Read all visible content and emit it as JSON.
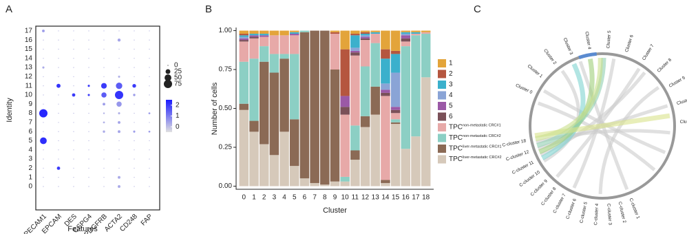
{
  "chart_data": [
    {
      "type": "dot",
      "panel": "A",
      "y_label": "Identity",
      "x_label": "Features",
      "categories": [
        "PECAM1",
        "EPCAM",
        "DES",
        "CSPG4",
        "PDGFRB",
        "ACTA2",
        "CD248",
        "FAP"
      ],
      "identities": [
        "0",
        "1",
        "2",
        "3",
        "4",
        "5",
        "6",
        "7",
        "8",
        "9",
        "10",
        "11",
        "12",
        "13",
        "14",
        "15",
        "16",
        "17"
      ],
      "pct": [
        [
          1,
          1,
          1,
          1,
          1,
          50,
          1,
          1,
          75,
          1,
          1,
          1,
          1,
          5,
          1,
          1,
          1,
          8
        ],
        [
          1,
          1,
          12,
          1,
          1,
          1,
          1,
          1,
          1,
          1,
          1,
          18,
          1,
          1,
          1,
          1,
          1,
          1
        ],
        [
          1,
          1,
          1,
          1,
          1,
          1,
          1,
          1,
          1,
          1,
          12,
          1,
          1,
          1,
          1,
          1,
          1,
          1
        ],
        [
          1,
          1,
          1,
          1,
          1,
          1,
          1,
          1,
          1,
          1,
          5,
          5,
          1,
          1,
          1,
          1,
          1,
          1
        ],
        [
          1,
          1,
          1,
          1,
          1,
          1,
          6,
          4,
          3,
          8,
          30,
          35,
          1,
          1,
          1,
          1,
          1,
          1
        ],
        [
          8,
          8,
          1,
          1,
          1,
          1,
          8,
          8,
          5,
          30,
          75,
          45,
          5,
          1,
          1,
          1,
          10,
          1
        ],
        [
          1,
          1,
          1,
          1,
          1,
          1,
          5,
          1,
          1,
          1,
          6,
          15,
          1,
          1,
          1,
          1,
          1,
          1
        ],
        [
          1,
          1,
          1,
          1,
          1,
          1,
          4,
          1,
          4,
          1,
          1,
          1,
          1,
          1,
          1,
          1,
          1,
          1
        ]
      ],
      "expr": [
        [
          0,
          0,
          0,
          0,
          0,
          2.2,
          0,
          0,
          2.3,
          0,
          0,
          0,
          0,
          0.3,
          0,
          0,
          0,
          0.5
        ],
        [
          0,
          0,
          2,
          0,
          0,
          0,
          0,
          0,
          0,
          0,
          0,
          2.1,
          0,
          0,
          0,
          0,
          0,
          0
        ],
        [
          0,
          0,
          0,
          0,
          0,
          0,
          0,
          0,
          0,
          0,
          2,
          0,
          0,
          0,
          0,
          0,
          0,
          0
        ],
        [
          0,
          0,
          0,
          0,
          0,
          0,
          0,
          0,
          0,
          0,
          2,
          2,
          0,
          0,
          0,
          0,
          0,
          0
        ],
        [
          0,
          0,
          0,
          0,
          0,
          0,
          0.3,
          0.2,
          0.2,
          0.5,
          1.5,
          2,
          0,
          0,
          0,
          0,
          0,
          0
        ],
        [
          0.3,
          0.3,
          0,
          0,
          0,
          0,
          0.4,
          0.4,
          0.2,
          0.6,
          2.1,
          1.5,
          0.2,
          0,
          0,
          0,
          0.4,
          0
        ],
        [
          0,
          0,
          0,
          0,
          0,
          0,
          0.5,
          0,
          0,
          0,
          0.5,
          2,
          0,
          0,
          0,
          0,
          0,
          0
        ],
        [
          0,
          0,
          0,
          0,
          0,
          0,
          0.5,
          0,
          0.5,
          0,
          0,
          0,
          0,
          0,
          0,
          0,
          0,
          0
        ]
      ],
      "size_ticks": [
        0,
        25,
        50,
        75
      ],
      "size_max": 75,
      "clim": [
        -0.5,
        2.5
      ],
      "cticks": [
        0,
        1,
        2
      ],
      "color_low": "#e0e0e0",
      "color_high": "#1a1aff"
    },
    {
      "type": "stacked_bar",
      "panel": "B",
      "y_label": "Number of cells",
      "x_label": "Cluster",
      "categories": [
        "0",
        "1",
        "2",
        "3",
        "4",
        "5",
        "6",
        "7",
        "8",
        "9",
        "10",
        "11",
        "12",
        "13",
        "14",
        "15",
        "16",
        "17",
        "18"
      ],
      "ylim": [
        -0.02,
        1.02
      ],
      "yticks": [
        {
          "value": 0,
          "label": "0.00"
        },
        {
          "value": 0.25,
          "label": "0.25"
        },
        {
          "value": 0.5,
          "label": "0.50"
        },
        {
          "value": 0.75,
          "label": "0.75"
        },
        {
          "value": 1,
          "label": "1.00"
        }
      ],
      "series": [
        {
          "name": "1",
          "color": "#e3a43a",
          "values": [
            0.02,
            0.02,
            0.02,
            0.03,
            0.03,
            0.01,
            0,
            0,
            0,
            0.01,
            0.12,
            0.02,
            0.01,
            0.01,
            0.12,
            0.13,
            0.01,
            0.01,
            0.01
          ]
        },
        {
          "name": "2",
          "color": "#b5563f",
          "values": [
            0.01,
            0,
            0,
            0,
            0,
            0,
            0,
            0,
            0,
            0.01,
            0.3,
            0.01,
            0.01,
            0,
            0.06,
            0.02,
            0,
            0,
            0
          ]
        },
        {
          "name": "3",
          "color": "#3bb0cc",
          "values": [
            0.01,
            0.01,
            0.01,
            0,
            0,
            0.01,
            0,
            0,
            0,
            0,
            0,
            0.08,
            0.01,
            0.01,
            0.16,
            0.12,
            0.01,
            0.01,
            0
          ]
        },
        {
          "name": "4",
          "color": "#8aa4d6",
          "values": [
            0.01,
            0,
            0,
            0,
            0,
            0,
            0,
            0,
            0,
            0,
            0,
            0.02,
            0.01,
            0,
            0.04,
            0.22,
            0.01,
            0,
            0
          ]
        },
        {
          "name": "5",
          "color": "#9b59a6",
          "values": [
            0.01,
            0.01,
            0.01,
            0,
            0,
            0.01,
            0,
            0,
            0,
            0,
            0.07,
            0.01,
            0.01,
            0,
            0.02,
            0.02,
            0.02,
            0,
            0
          ]
        },
        {
          "name": "6",
          "color": "#7a5058",
          "values": [
            0.01,
            0.01,
            0,
            0,
            0,
            0,
            0,
            0,
            0,
            0,
            0.05,
            0.02,
            0.01,
            0,
            0.02,
            0.02,
            0.02,
            0,
            0
          ]
        },
        {
          "name": "TPC",
          "name_sup": "non-metastatic CRC#1",
          "color": "#e7a9a8",
          "values": [
            0.13,
            0.13,
            0.06,
            0.12,
            0.12,
            0.12,
            0,
            0,
            0,
            0.23,
            0.4,
            0.45,
            0.17,
            0.06,
            0.54,
            0.04,
            0.03,
            0.01,
            0.01
          ]
        },
        {
          "name": "TPC",
          "name_sup": "non-metastatic CRC#2",
          "color": "#8ccfc4",
          "values": [
            0.27,
            0.4,
            0.1,
            0.12,
            0.03,
            0.42,
            0.01,
            0,
            0,
            0,
            0.03,
            0.16,
            0.32,
            0.28,
            0,
            0.02,
            0.66,
            0.65,
            0.28
          ]
        },
        {
          "name": "TPC",
          "name_sup": "liver-metastatic CRC#1",
          "color": "#8b6a55",
          "values": [
            0.04,
            0.07,
            0.53,
            0.53,
            0.47,
            0.3,
            0.94,
            0.98,
            0.99,
            0.72,
            0,
            0.06,
            0.07,
            0.18,
            0.02,
            0.01,
            0,
            0,
            0
          ]
        },
        {
          "name": "TPC",
          "name_sup": "liver-metastatic CRC#2",
          "color": "#d6c9ba",
          "values": [
            0.49,
            0.35,
            0.27,
            0.2,
            0.35,
            0.13,
            0.05,
            0.02,
            0.01,
            0.03,
            0.03,
            0.17,
            0.38,
            0.46,
            0.02,
            0.4,
            0.24,
            0.32,
            0.7
          ]
        }
      ]
    }
  ],
  "panel_c": {
    "letter": "C",
    "top_labels": [
      "Cluster 0",
      "Cluster 1",
      "Cluster 2",
      "Cluster 3",
      "Cluster 4",
      "Cluster 5",
      "Cluster 6",
      "Cluster 7",
      "Cluster 8",
      "Cluster 9",
      "Cluster 10",
      "Cluster 11"
    ],
    "bottom_labels": [
      "C-cluster 1",
      "C-cluster 2",
      "C-cluster 3",
      "C-cluster 4",
      "C-cluster 5",
      "C-cluster 6",
      "C-cluster 7",
      "C-cluster 8",
      "C-cluster 9",
      "C-cluster 10",
      "C-cluster 11",
      "C-cluster 12",
      "C-cluster 18"
    ]
  }
}
